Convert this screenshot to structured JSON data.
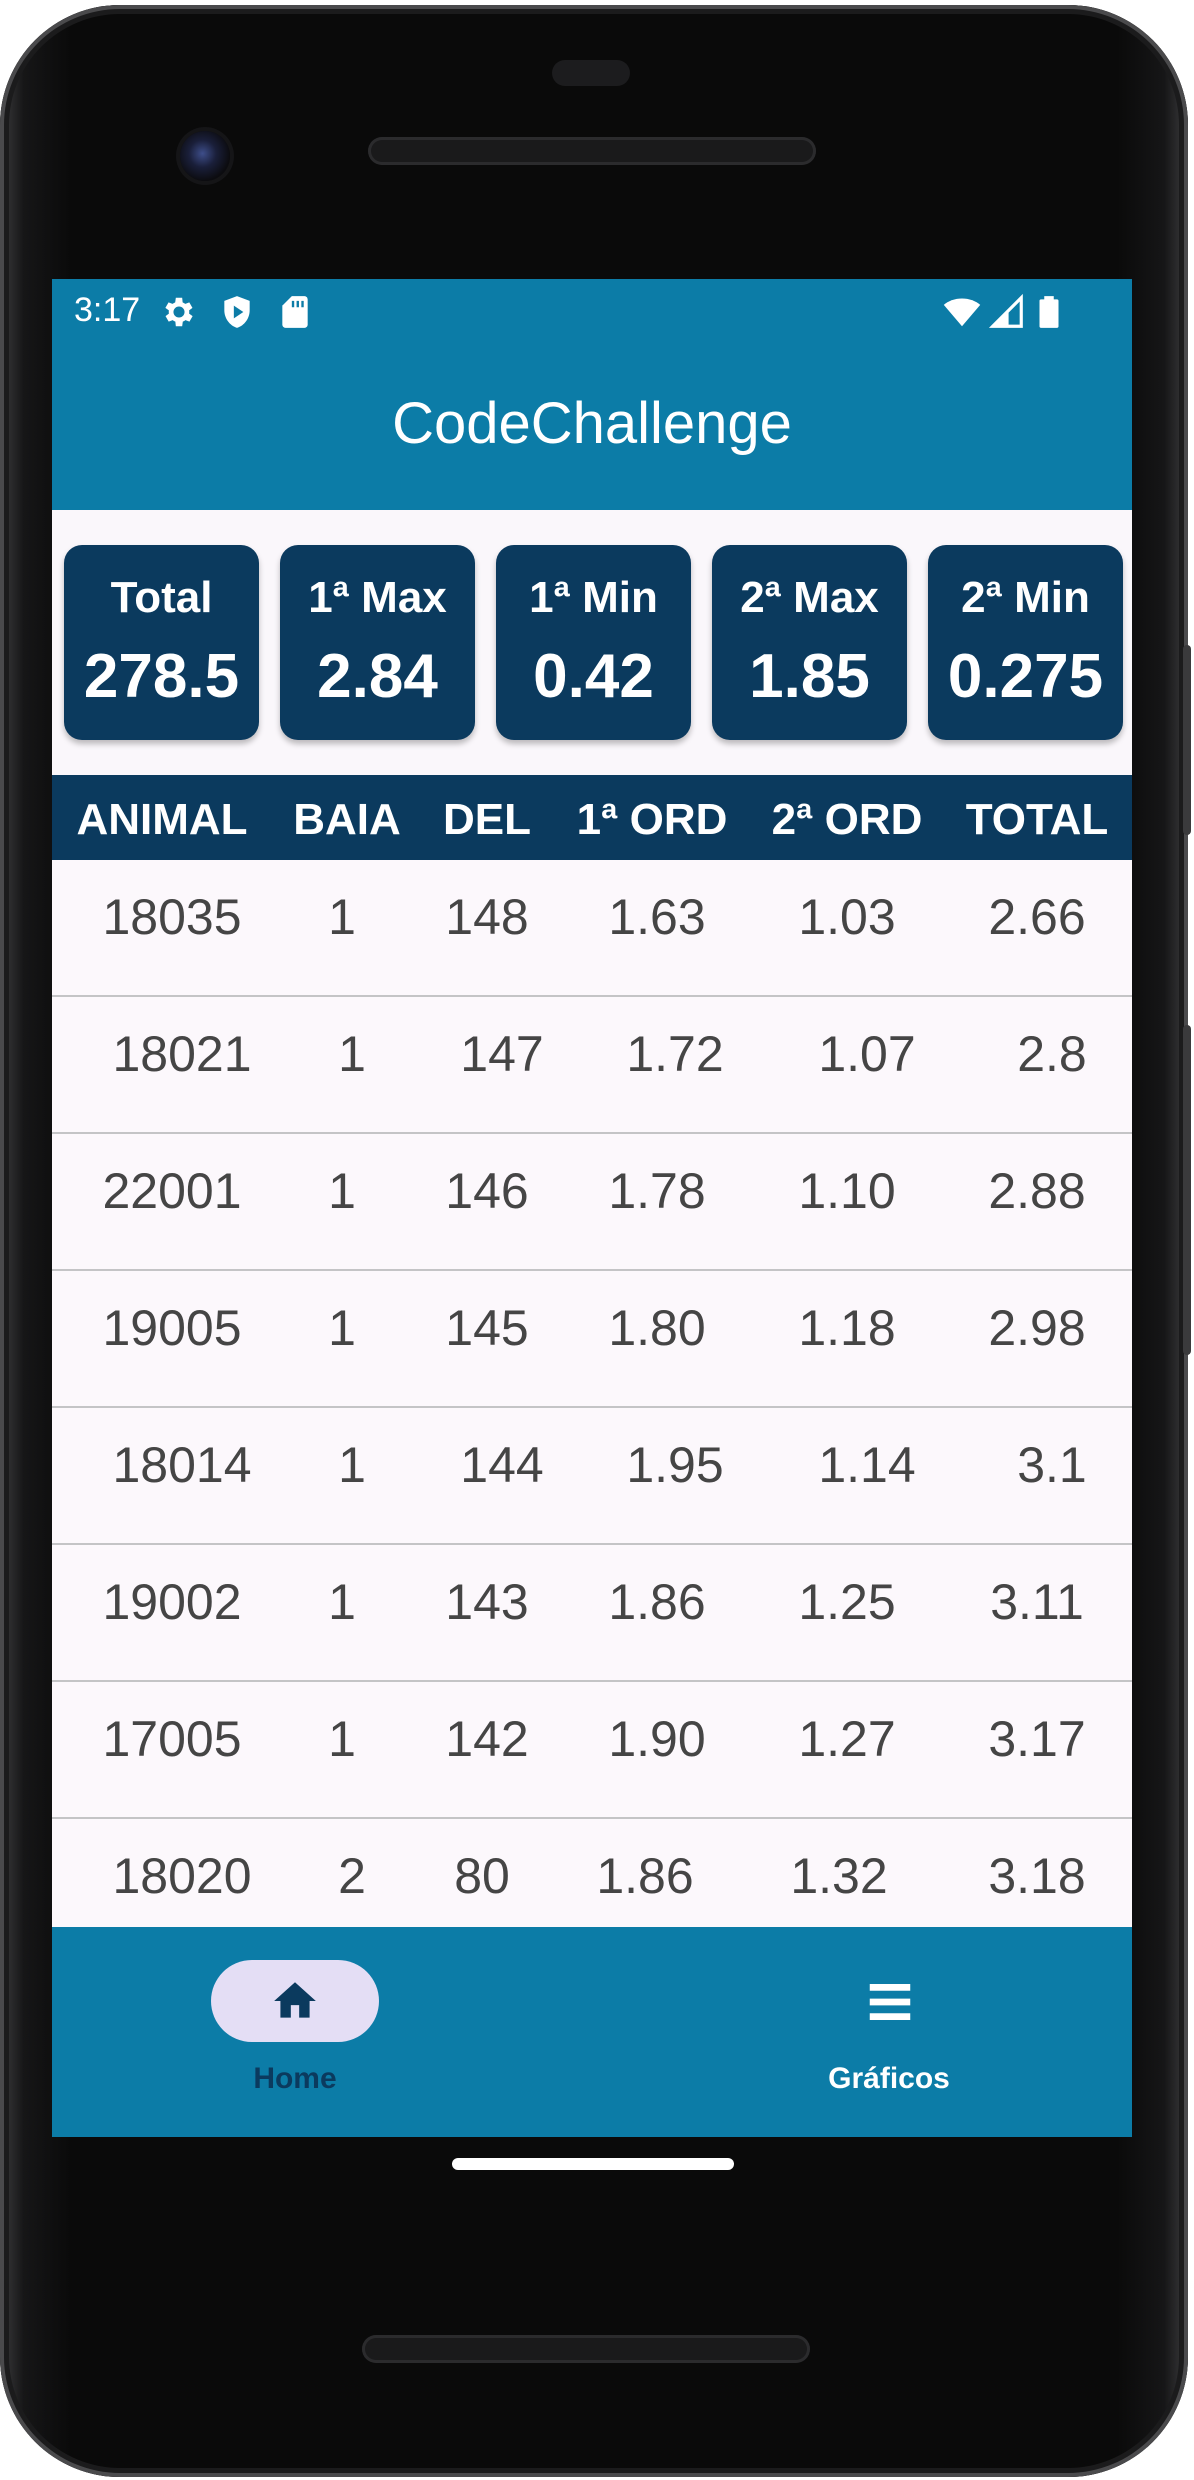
{
  "status_bar": {
    "time": "3:17",
    "left_icons": [
      "gear-icon",
      "shield-icon",
      "sd-card-icon"
    ],
    "right_icons": [
      "wifi-icon",
      "signal-icon",
      "battery-icon"
    ]
  },
  "app_bar": {
    "title": "CodeChallenge"
  },
  "colors": {
    "primary": "#0c7ca7",
    "dark": "#0b3a5e",
    "row_bg": "#fcf8fc",
    "nav_pill": "#e4def5"
  },
  "summary_cards": [
    {
      "label": "Total",
      "value": "278.5"
    },
    {
      "label": "1ª Max",
      "value": "2.84"
    },
    {
      "label": "1ª Min",
      "value": "0.42"
    },
    {
      "label": "2ª Max",
      "value": "1.85"
    },
    {
      "label": "2ª Min",
      "value": "0.275"
    }
  ],
  "table": {
    "headers": [
      "ANIMAL",
      "BAIA",
      "DEL",
      "1ª ORD",
      "2ª ORD",
      "TOTAL"
    ],
    "rows": [
      [
        "18035",
        "1",
        "148",
        "1.63",
        "1.03",
        "2.66"
      ],
      [
        "18021",
        "1",
        "147",
        "1.72",
        "1.07",
        "2.8"
      ],
      [
        "22001",
        "1",
        "146",
        "1.78",
        "1.10",
        "2.88"
      ],
      [
        "19005",
        "1",
        "145",
        "1.80",
        "1.18",
        "2.98"
      ],
      [
        "18014",
        "1",
        "144",
        "1.95",
        "1.14",
        "3.1"
      ],
      [
        "19002",
        "1",
        "143",
        "1.86",
        "1.25",
        "3.11"
      ],
      [
        "17005",
        "1",
        "142",
        "1.90",
        "1.27",
        "3.17"
      ],
      [
        "18020",
        "2",
        "80",
        "1.86",
        "1.32",
        "3.18"
      ]
    ]
  },
  "bottom_nav": {
    "items": [
      {
        "label": "Home",
        "icon": "home-icon",
        "selected": true
      },
      {
        "label": "Gráficos",
        "icon": "menu-lines-icon",
        "selected": false
      }
    ]
  }
}
